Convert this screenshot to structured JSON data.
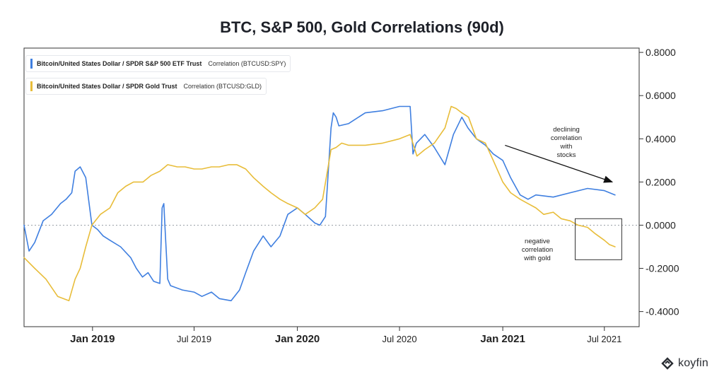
{
  "colors": {
    "spy": "#3f7fe0",
    "gld": "#e8bd3a",
    "axis": "#333333",
    "zero": "#9aa0a8"
  },
  "legend": {
    "spy": {
      "name": "Bitcoin/United States Dollar / SPDR S&P 500 ETF Trust",
      "value": "Correlation (BTCUSD:SPY)"
    },
    "gld": {
      "name": "Bitcoin/United States Dollar / SPDR Gold Trust",
      "value": "Correlation (BTCUSD:GLD)"
    }
  },
  "annotations": {
    "stocks": [
      "declining",
      "correlation",
      "with",
      "stocks"
    ],
    "gold": [
      "negative",
      "correlation",
      "with gold"
    ]
  },
  "brand": "koyfin",
  "chart_data": {
    "type": "line",
    "title": "BTC, S&P 500, Gold Correlations (90d)",
    "xlabel": "",
    "ylabel": "",
    "ylim": [
      -0.47,
      0.82
    ],
    "xlim": [
      "2018-09-01",
      "2021-09-01"
    ],
    "y_ticks": [
      0.8,
      0.6,
      0.4,
      0.2,
      0.0,
      -0.2,
      -0.4
    ],
    "y_tick_labels": [
      "0.8000",
      "0.6000",
      "0.4000",
      "0.2000",
      "0.0000",
      "-0.2000",
      "-0.4000"
    ],
    "x_ticks": [
      {
        "date": "2019-01-01",
        "label": "Jan 2019",
        "major": true
      },
      {
        "date": "2019-07-01",
        "label": "Jul 2019",
        "major": false
      },
      {
        "date": "2020-01-01",
        "label": "Jan 2020",
        "major": true
      },
      {
        "date": "2020-07-01",
        "label": "Jul 2020",
        "major": false
      },
      {
        "date": "2021-01-01",
        "label": "Jan 2021",
        "major": true
      },
      {
        "date": "2021-07-01",
        "label": "Jul 2021",
        "major": false
      }
    ],
    "zero_line": true,
    "grid": false,
    "legend_position": "top-left",
    "series": [
      {
        "name": "Correlation (BTCUSD:SPY)",
        "color": "#3f7fe0",
        "x": [
          "2018-09-01",
          "2018-09-10",
          "2018-09-20",
          "2018-10-05",
          "2018-10-20",
          "2018-11-05",
          "2018-11-15",
          "2018-11-25",
          "2018-12-01",
          "2018-12-10",
          "2018-12-20",
          "2018-12-31",
          "2019-01-10",
          "2019-01-20",
          "2019-02-01",
          "2019-02-20",
          "2019-03-10",
          "2019-03-20",
          "2019-03-31",
          "2019-04-10",
          "2019-04-20",
          "2019-05-01",
          "2019-05-05",
          "2019-05-08",
          "2019-05-10",
          "2019-05-15",
          "2019-05-20",
          "2019-06-10",
          "2019-07-01",
          "2019-07-15",
          "2019-08-01",
          "2019-08-15",
          "2019-09-05",
          "2019-09-20",
          "2019-10-01",
          "2019-10-15",
          "2019-11-01",
          "2019-11-15",
          "2019-12-01",
          "2019-12-15",
          "2020-01-01",
          "2020-01-15",
          "2020-02-01",
          "2020-02-10",
          "2020-02-20",
          "2020-03-01",
          "2020-03-05",
          "2020-03-10",
          "2020-03-15",
          "2020-04-01",
          "2020-05-01",
          "2020-06-01",
          "2020-07-01",
          "2020-07-20",
          "2020-07-25",
          "2020-07-31",
          "2020-08-15",
          "2020-09-01",
          "2020-09-20",
          "2020-10-05",
          "2020-10-20",
          "2020-10-31",
          "2020-11-15",
          "2020-12-01",
          "2020-12-15",
          "2021-01-01",
          "2021-01-15",
          "2021-02-01",
          "2021-02-15",
          "2021-03-01",
          "2021-04-01",
          "2021-05-01",
          "2021-06-01",
          "2021-07-01",
          "2021-07-20"
        ],
        "y": [
          0.0,
          -0.12,
          -0.08,
          0.02,
          0.05,
          0.1,
          0.12,
          0.15,
          0.25,
          0.27,
          0.22,
          0.0,
          -0.02,
          -0.05,
          -0.07,
          -0.1,
          -0.15,
          -0.2,
          -0.24,
          -0.22,
          -0.26,
          -0.27,
          0.08,
          0.1,
          0.0,
          -0.25,
          -0.28,
          -0.3,
          -0.31,
          -0.33,
          -0.31,
          -0.34,
          -0.35,
          -0.3,
          -0.22,
          -0.12,
          -0.05,
          -0.1,
          -0.05,
          0.05,
          0.08,
          0.05,
          0.01,
          0.0,
          0.04,
          0.45,
          0.52,
          0.5,
          0.46,
          0.47,
          0.52,
          0.53,
          0.55,
          0.55,
          0.33,
          0.38,
          0.42,
          0.36,
          0.28,
          0.42,
          0.5,
          0.45,
          0.4,
          0.37,
          0.33,
          0.3,
          0.22,
          0.14,
          0.12,
          0.14,
          0.13,
          0.15,
          0.17,
          0.16,
          0.14
        ]
      },
      {
        "name": "Correlation (BTCUSD:GLD)",
        "color": "#e8bd3a",
        "x": [
          "2018-09-01",
          "2018-09-20",
          "2018-10-10",
          "2018-10-31",
          "2018-11-20",
          "2018-12-01",
          "2018-12-10",
          "2018-12-20",
          "2018-12-31",
          "2019-01-15",
          "2019-02-01",
          "2019-02-15",
          "2019-03-01",
          "2019-03-15",
          "2019-04-01",
          "2019-04-15",
          "2019-05-01",
          "2019-05-15",
          "2019-06-01",
          "2019-06-15",
          "2019-07-01",
          "2019-07-15",
          "2019-08-01",
          "2019-08-15",
          "2019-09-01",
          "2019-09-15",
          "2019-10-01",
          "2019-10-15",
          "2019-11-01",
          "2019-11-15",
          "2019-12-01",
          "2019-12-15",
          "2020-01-01",
          "2020-01-15",
          "2020-02-01",
          "2020-02-15",
          "2020-03-01",
          "2020-03-10",
          "2020-03-20",
          "2020-04-01",
          "2020-05-01",
          "2020-06-01",
          "2020-07-01",
          "2020-07-20",
          "2020-08-01",
          "2020-08-15",
          "2020-09-01",
          "2020-09-20",
          "2020-10-01",
          "2020-10-10",
          "2020-10-20",
          "2020-11-01",
          "2020-11-15",
          "2020-12-01",
          "2020-12-15",
          "2021-01-01",
          "2021-01-15",
          "2021-02-01",
          "2021-02-15",
          "2021-03-01",
          "2021-03-15",
          "2021-04-01",
          "2021-04-15",
          "2021-05-01",
          "2021-05-15",
          "2021-06-01",
          "2021-06-15",
          "2021-07-01",
          "2021-07-10",
          "2021-07-20"
        ],
        "y": [
          -0.15,
          -0.2,
          -0.25,
          -0.33,
          -0.35,
          -0.25,
          -0.2,
          -0.1,
          0.0,
          0.05,
          0.08,
          0.15,
          0.18,
          0.2,
          0.2,
          0.23,
          0.25,
          0.28,
          0.27,
          0.27,
          0.26,
          0.26,
          0.27,
          0.27,
          0.28,
          0.28,
          0.26,
          0.22,
          0.18,
          0.15,
          0.12,
          0.1,
          0.08,
          0.05,
          0.08,
          0.12,
          0.35,
          0.36,
          0.38,
          0.37,
          0.37,
          0.38,
          0.4,
          0.42,
          0.32,
          0.35,
          0.38,
          0.45,
          0.55,
          0.54,
          0.52,
          0.5,
          0.4,
          0.38,
          0.3,
          0.2,
          0.15,
          0.12,
          0.1,
          0.08,
          0.05,
          0.06,
          0.03,
          0.02,
          0.0,
          -0.01,
          -0.04,
          -0.07,
          -0.09,
          -0.1
        ]
      }
    ]
  }
}
